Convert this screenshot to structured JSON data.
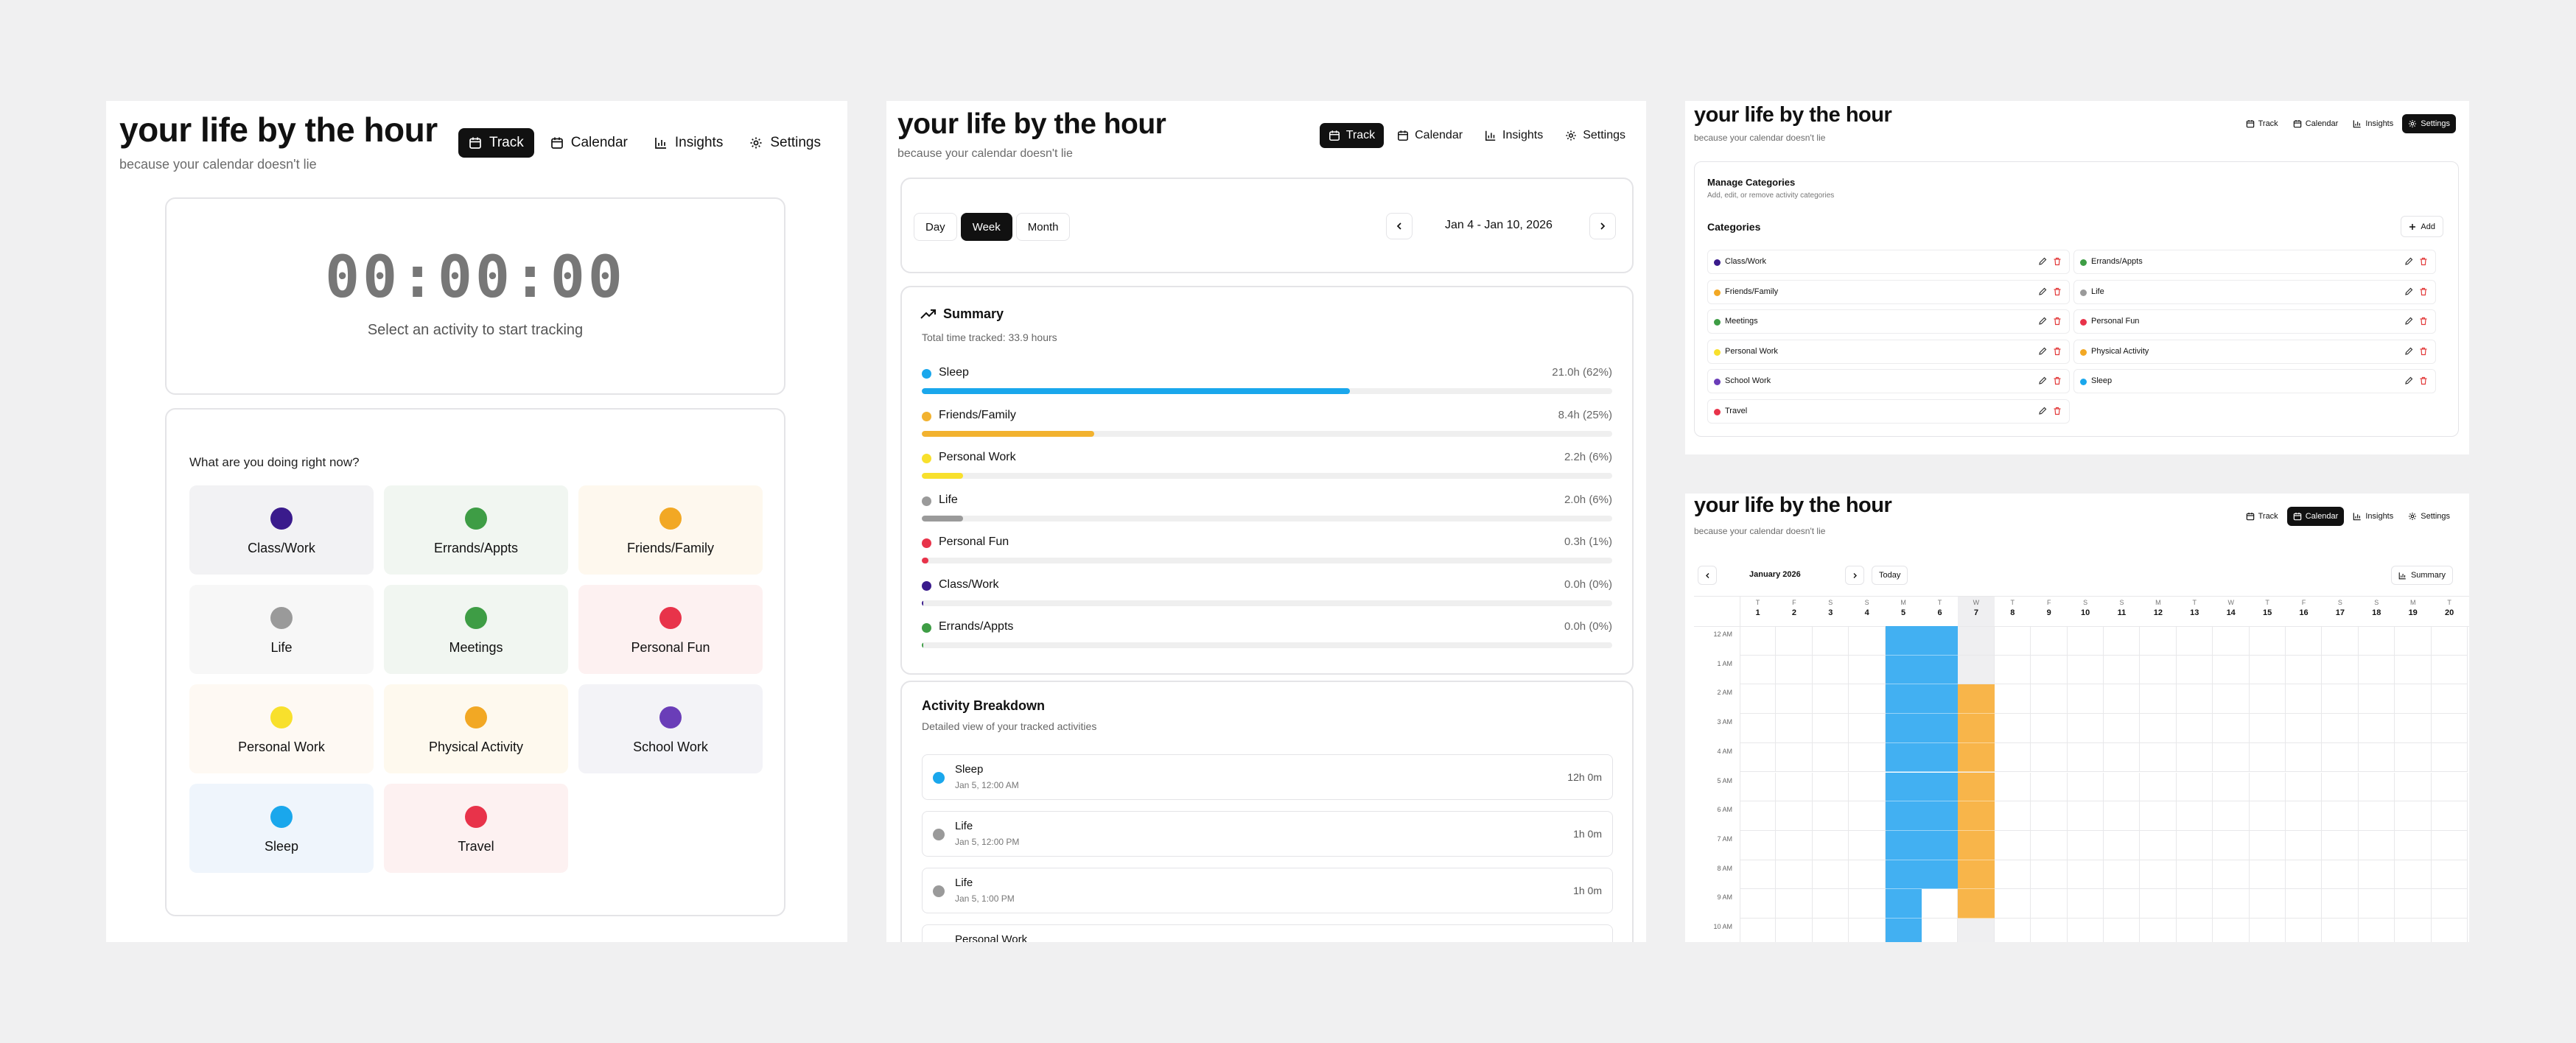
{
  "app": {
    "title": "your life by the hour",
    "subtitle": "because your calendar doesn't lie"
  },
  "nav": [
    {
      "label": "Track",
      "icon": "calendar-icon"
    },
    {
      "label": "Calendar",
      "icon": "calendar-icon"
    },
    {
      "label": "Insights",
      "icon": "bar-chart-icon"
    },
    {
      "label": "Settings",
      "icon": "gear-icon"
    }
  ],
  "colors": {
    "accent": "#111111",
    "sleep": "#1AA7EC",
    "friends_family": "#F2B22F",
    "personal_work": "#F8E02C",
    "life": "#9A9A9A",
    "personal_fun": "#E8334A",
    "class_work": "#3A1B8C",
    "errands": "#3E9D45"
  },
  "track": {
    "timer": "00:00:00",
    "hint": "Select an activity to start tracking",
    "question": "What are you doing right now?",
    "activities": [
      {
        "label": "Class/Work",
        "color": "#3A1B8C",
        "bg": "#F2F2F4"
      },
      {
        "label": "Errands/Appts",
        "color": "#3E9D45",
        "bg": "#F1F6F1"
      },
      {
        "label": "Friends/Family",
        "color": "#F2A824",
        "bg": "#FEF8EE"
      },
      {
        "label": "Life",
        "color": "#9A9A9A",
        "bg": "#F7F7F7"
      },
      {
        "label": "Meetings",
        "color": "#3E9D45",
        "bg": "#F1F6F1"
      },
      {
        "label": "Personal Fun",
        "color": "#E8334A",
        "bg": "#FDF1F1"
      },
      {
        "label": "Personal Work",
        "color": "#F8E02C",
        "bg": "#FEF9F3"
      },
      {
        "label": "Physical Activity",
        "color": "#F2A824",
        "bg": "#FEF9EE"
      },
      {
        "label": "School Work",
        "color": "#6A3DB8",
        "bg": "#F3F3F7"
      },
      {
        "label": "Sleep",
        "color": "#1AA7EC",
        "bg": "#EFF5FC"
      },
      {
        "label": "Travel",
        "color": "#E8334A",
        "bg": "#FDF1F1"
      }
    ]
  },
  "insights": {
    "views": [
      "Day",
      "Week",
      "Month"
    ],
    "active_view": "Week",
    "range": "Jan 4 - Jan 10, 2026",
    "summary_title": "Summary",
    "summary_sub": "Total time tracked: 33.9 hours",
    "summary": [
      {
        "name": "Sleep",
        "value": "21.0h (62%)",
        "pct": 62,
        "color": "#1AA7EC"
      },
      {
        "name": "Friends/Family",
        "value": "8.4h (25%)",
        "pct": 25,
        "color": "#F2B22F"
      },
      {
        "name": "Personal Work",
        "value": "2.2h (6%)",
        "pct": 6,
        "color": "#F8E02C"
      },
      {
        "name": "Life",
        "value": "2.0h (6%)",
        "pct": 6,
        "color": "#9A9A9A"
      },
      {
        "name": "Personal Fun",
        "value": "0.3h (1%)",
        "pct": 1,
        "color": "#E8334A"
      },
      {
        "name": "Class/Work",
        "value": "0.0h (0%)",
        "pct": 0,
        "color": "#3A1B8C"
      },
      {
        "name": "Errands/Appts",
        "value": "0.0h (0%)",
        "pct": 0,
        "color": "#3E9D45"
      }
    ],
    "breakdown_title": "Activity Breakdown",
    "breakdown_sub": "Detailed view of your tracked activities",
    "entries": [
      {
        "name": "Sleep",
        "time": "Jan 5, 12:00 AM",
        "duration": "12h 0m",
        "color": "#1AA7EC"
      },
      {
        "name": "Life",
        "time": "Jan 5, 12:00 PM",
        "duration": "1h 0m",
        "color": "#9A9A9A"
      },
      {
        "name": "Life",
        "time": "Jan 5, 1:00 PM",
        "duration": "1h 0m",
        "color": "#9A9A9A"
      },
      {
        "name": "Personal Work",
        "time": "",
        "duration": "",
        "color": "#F8E02C"
      }
    ]
  },
  "settings": {
    "manage_title": "Manage Categories",
    "manage_sub": "Add, edit, or remove activity categories",
    "categories_title": "Categories",
    "add_label": "Add",
    "categories_left": [
      {
        "name": "Class/Work",
        "color": "#3A1B8C"
      },
      {
        "name": "Friends/Family",
        "color": "#F2A824"
      },
      {
        "name": "Meetings",
        "color": "#3E9D45"
      },
      {
        "name": "Personal Work",
        "color": "#F8E02C"
      },
      {
        "name": "School Work",
        "color": "#6A3DB8"
      },
      {
        "name": "Travel",
        "color": "#E8334A"
      }
    ],
    "categories_right": [
      {
        "name": "Errands/Appts",
        "color": "#3E9D45"
      },
      {
        "name": "Life",
        "color": "#9A9A9A"
      },
      {
        "name": "Personal Fun",
        "color": "#E8334A"
      },
      {
        "name": "Physical Activity",
        "color": "#F2A824"
      },
      {
        "name": "Sleep",
        "color": "#1AA7EC"
      }
    ]
  },
  "calendar": {
    "month": "January 2026",
    "today_label": "Today",
    "summary_label": "Summary",
    "days": [
      {
        "d": "T",
        "n": "1"
      },
      {
        "d": "F",
        "n": "2"
      },
      {
        "d": "S",
        "n": "3"
      },
      {
        "d": "S",
        "n": "4"
      },
      {
        "d": "M",
        "n": "5"
      },
      {
        "d": "T",
        "n": "6"
      },
      {
        "d": "W",
        "n": "7"
      },
      {
        "d": "T",
        "n": "8"
      },
      {
        "d": "F",
        "n": "9"
      },
      {
        "d": "S",
        "n": "10"
      },
      {
        "d": "S",
        "n": "11"
      },
      {
        "d": "M",
        "n": "12"
      },
      {
        "d": "T",
        "n": "13"
      },
      {
        "d": "W",
        "n": "14"
      },
      {
        "d": "T",
        "n": "15"
      },
      {
        "d": "F",
        "n": "16"
      },
      {
        "d": "S",
        "n": "17"
      },
      {
        "d": "S",
        "n": "18"
      },
      {
        "d": "M",
        "n": "19"
      },
      {
        "d": "T",
        "n": "20"
      }
    ],
    "hours": [
      "12 AM",
      "1 AM",
      "2 AM",
      "3 AM",
      "4 AM",
      "5 AM",
      "6 AM",
      "7 AM",
      "8 AM",
      "9 AM",
      "10 AM"
    ],
    "today_index": 6,
    "blocks": [
      {
        "day": 4,
        "start": 0,
        "end": 11,
        "color": "#42B0F2"
      },
      {
        "day": 5,
        "start": 0,
        "end": 9,
        "color": "#42B0F2"
      },
      {
        "day": 6,
        "start": 2,
        "end": 10,
        "color": "#F8B54A"
      }
    ]
  }
}
